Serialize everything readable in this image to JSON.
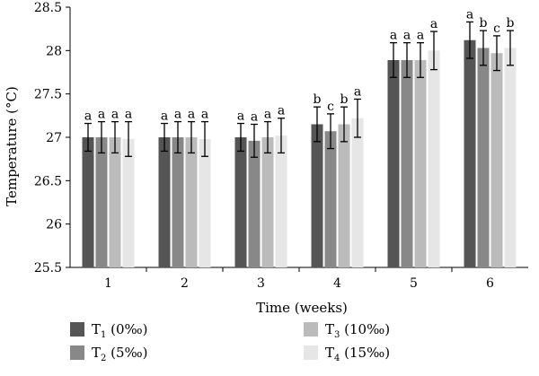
{
  "chart_data": {
    "type": "bar",
    "xlabel": "Time (weeks)",
    "ylabel": "Temperature (°C)",
    "ylim": [
      25.5,
      28.5
    ],
    "yticks": [
      "25.5",
      "26",
      "26.5",
      "27",
      "27.5",
      "28",
      "28.5"
    ],
    "categories": [
      "1",
      "2",
      "3",
      "4",
      "5",
      "6"
    ],
    "grid": false,
    "legend_position": "bottom",
    "series": [
      {
        "name": "T1 (0‰)",
        "legend_base": "T",
        "legend_sub": "1",
        "legend_rest": " (0‰)",
        "color": "#555555",
        "values": [
          27.0,
          27.0,
          27.0,
          27.15,
          27.89,
          28.12
        ],
        "errors": [
          0.16,
          0.16,
          0.16,
          0.2,
          0.2,
          0.21
        ],
        "letters": [
          "a",
          "a",
          "a",
          "b",
          "a",
          "a"
        ]
      },
      {
        "name": "T2 (5‰)",
        "legend_base": "T",
        "legend_sub": "2",
        "legend_rest": " (5‰)",
        "color": "#888888",
        "values": [
          27.0,
          27.0,
          26.96,
          27.07,
          27.89,
          28.03
        ],
        "errors": [
          0.18,
          0.18,
          0.19,
          0.2,
          0.2,
          0.2
        ],
        "letters": [
          "a",
          "a",
          "a",
          "c",
          "a",
          "b"
        ]
      },
      {
        "name": "T3 (10‰)",
        "legend_base": "T",
        "legend_sub": "3",
        "legend_rest": " (10‰)",
        "color": "#bbbbbb",
        "values": [
          27.0,
          27.0,
          27.0,
          27.15,
          27.89,
          27.97
        ],
        "errors": [
          0.18,
          0.18,
          0.18,
          0.2,
          0.2,
          0.2
        ],
        "letters": [
          "a",
          "a",
          "a",
          "b",
          "a",
          "c"
        ]
      },
      {
        "name": "T4 (15‰)",
        "legend_base": "T",
        "legend_sub": "4",
        "legend_rest": " (15‰)",
        "color": "#e6e6e6",
        "values": [
          26.98,
          26.98,
          27.02,
          27.22,
          28.0,
          28.03
        ],
        "errors": [
          0.2,
          0.2,
          0.2,
          0.22,
          0.22,
          0.2
        ],
        "letters": [
          "a",
          "a",
          "a",
          "a",
          "a",
          "b"
        ]
      }
    ]
  }
}
